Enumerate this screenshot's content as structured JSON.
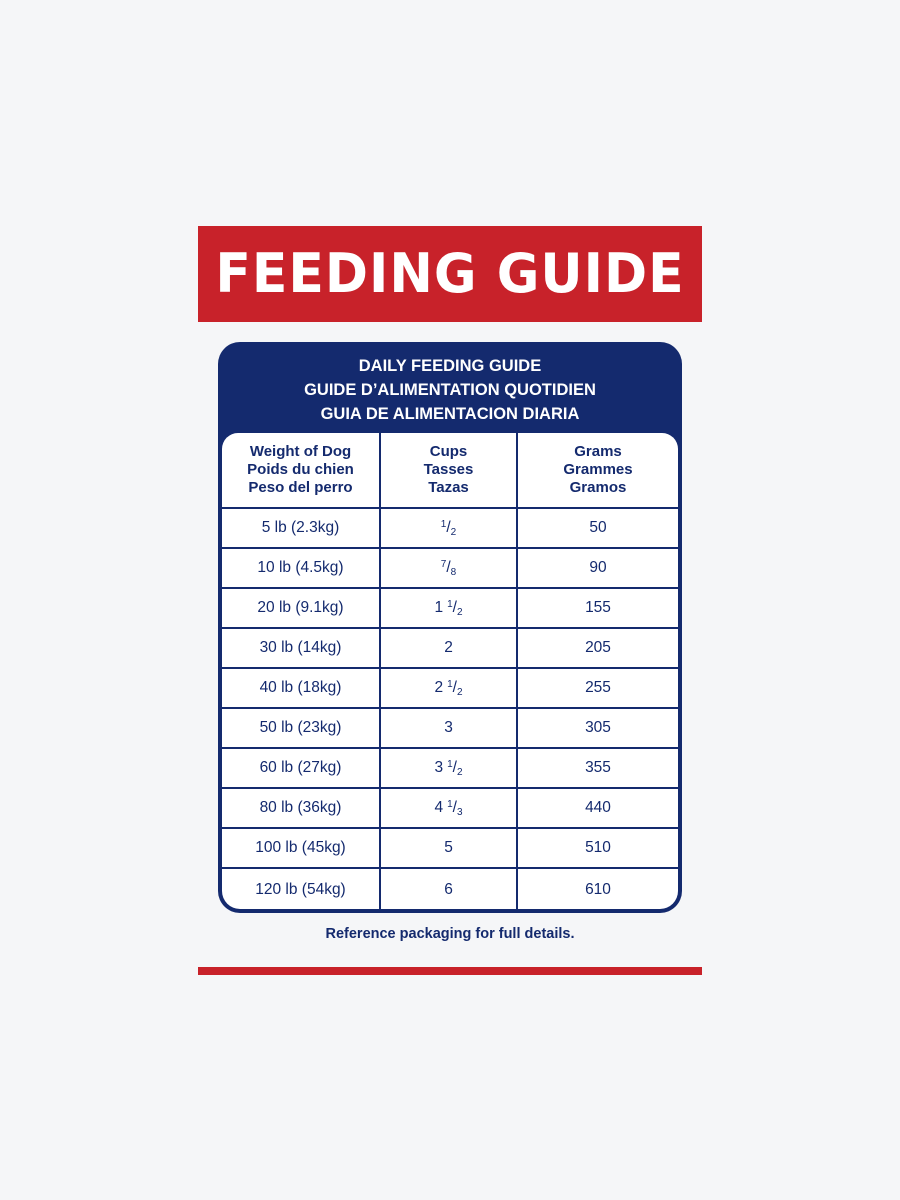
{
  "banner": {
    "title": "FEEDING GUIDE"
  },
  "card": {
    "title_lines": [
      "DAILY FEEDING GUIDE",
      "GUIDE D’ALIMENTATION QUOTIDIEN",
      "GUIA DE ALIMENTACION DIARIA"
    ],
    "columns": [
      {
        "lines": [
          "Weight of Dog",
          "Poids du chien",
          "Peso del perro"
        ]
      },
      {
        "lines": [
          "Cups",
          "Tasses",
          "Tazas"
        ]
      },
      {
        "lines": [
          "Grams",
          "Grammes",
          "Gramos"
        ]
      }
    ],
    "rows": [
      {
        "weight": "5 lb (2.3kg)",
        "cups": {
          "whole": "",
          "num": "1",
          "den": "2"
        },
        "grams": "50"
      },
      {
        "weight": "10 lb (4.5kg)",
        "cups": {
          "whole": "",
          "num": "7",
          "den": "8"
        },
        "grams": "90"
      },
      {
        "weight": "20 lb (9.1kg)",
        "cups": {
          "whole": "1",
          "num": "1",
          "den": "2"
        },
        "grams": "155"
      },
      {
        "weight": "30 lb (14kg)",
        "cups": {
          "whole": "2",
          "num": "",
          "den": ""
        },
        "grams": "205"
      },
      {
        "weight": "40 lb (18kg)",
        "cups": {
          "whole": "2",
          "num": "1",
          "den": "2"
        },
        "grams": "255"
      },
      {
        "weight": "50 lb (23kg)",
        "cups": {
          "whole": "3",
          "num": "",
          "den": ""
        },
        "grams": "305"
      },
      {
        "weight": "60 lb (27kg)",
        "cups": {
          "whole": "3",
          "num": "1",
          "den": "2"
        },
        "grams": "355"
      },
      {
        "weight": "80 lb (36kg)",
        "cups": {
          "whole": "4",
          "num": "1",
          "den": "3"
        },
        "grams": "440"
      },
      {
        "weight": "100 lb (45kg)",
        "cups": {
          "whole": "5",
          "num": "",
          "den": ""
        },
        "grams": "510"
      },
      {
        "weight": "120 lb (54kg)",
        "cups": {
          "whole": "6",
          "num": "",
          "den": ""
        },
        "grams": "610"
      }
    ]
  },
  "footer": {
    "note": "Reference packaging for full details."
  },
  "colors": {
    "brand_red": "#c8222a",
    "navy": "#142a6e",
    "background": "#f5f6f8"
  }
}
